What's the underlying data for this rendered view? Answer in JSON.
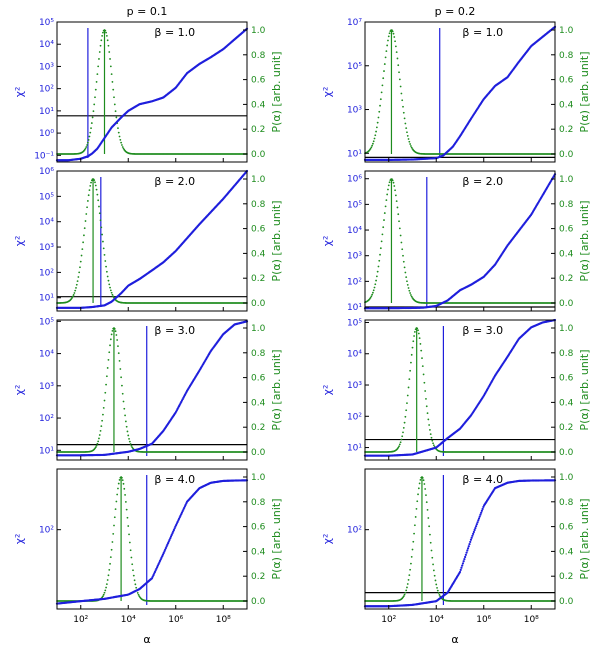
{
  "column_titles": [
    "p = 0.1",
    "p = 0.2"
  ],
  "left_axis_label": "χ²",
  "right_axis_label": "P(α) [arb. unit]",
  "x_axis_label": "α",
  "x_ticks": [
    "10²",
    "10⁴",
    "10⁶",
    "10⁸"
  ],
  "right_ticks": [
    "0.0",
    "0.2",
    "0.4",
    "0.6",
    "0.8",
    "1.0"
  ],
  "colors": {
    "chi2": "#1f1fdc",
    "prob": "#1e8c1e",
    "threshold": "#000000"
  },
  "chart_data": [
    {
      "type": "line",
      "p": "0.1",
      "title": "β = 1.0",
      "xlim": [
        10,
        1000000000.0
      ],
      "x_scale": "log",
      "ylim": [
        0.05,
        100000.0
      ],
      "y_scale": "log",
      "y_ticks": [
        "10⁻¹",
        "10⁰",
        "10¹",
        "10²",
        "10³",
        "10⁴",
        "10⁵"
      ],
      "chi2": {
        "x": [
          10,
          30,
          100,
          200,
          300,
          500,
          1000,
          2000,
          5000,
          10000,
          30000,
          100000,
          300000,
          1000000,
          3000000,
          10000000,
          30000000,
          100000000,
          1000000000
        ],
        "y": [
          0.06,
          0.06,
          0.07,
          0.09,
          0.12,
          0.2,
          0.6,
          1.8,
          5,
          10,
          20,
          27,
          40,
          110,
          500,
          1300,
          2600,
          6000,
          50000
        ]
      },
      "prob": {
        "center": 1000,
        "width_decades": 0.32
      },
      "threshold": 6,
      "alpha_opt": 200
    },
    {
      "type": "line",
      "p": "0.2",
      "title": "β = 1.0",
      "xlim": [
        10,
        1000000000.0
      ],
      "x_scale": "log",
      "ylim": [
        4,
        10000000.0
      ],
      "y_scale": "log",
      "y_ticks": [
        "10¹",
        "10³",
        "10⁵",
        "10⁷"
      ],
      "chi2": {
        "x": [
          10,
          100,
          1000,
          10000,
          20000,
          50000,
          100000,
          300000,
          1000000,
          3000000,
          10000000,
          30000000,
          100000000,
          1000000000
        ],
        "y": [
          5,
          5,
          5.2,
          6,
          8,
          20,
          60,
          400,
          3000,
          12000,
          30000,
          150000,
          800000,
          6000000
        ]
      },
      "prob": {
        "center": 130,
        "width_decades": 0.35
      },
      "threshold": 6.5,
      "alpha_opt": 14000
    },
    {
      "type": "line",
      "p": "0.1",
      "title": "β = 2.0",
      "xlim": [
        10,
        1000000000.0
      ],
      "x_scale": "log",
      "ylim": [
        3,
        1000000.0
      ],
      "y_scale": "log",
      "y_ticks": [
        "10¹",
        "10²",
        "10³",
        "10⁴",
        "10⁵",
        "10⁶"
      ],
      "chi2": {
        "x": [
          10,
          100,
          300,
          1000,
          2000,
          5000,
          10000,
          30000,
          100000,
          300000,
          1000000,
          10000000,
          100000000,
          1000000000
        ],
        "y": [
          4,
          4,
          4.3,
          5,
          7,
          15,
          30,
          55,
          120,
          250,
          700,
          8000,
          80000,
          1000000
        ]
      },
      "prob": {
        "center": 330,
        "width_decades": 0.35
      },
      "threshold": 11,
      "alpha_opt": 700
    },
    {
      "type": "line",
      "p": "0.2",
      "title": "β = 2.0",
      "xlim": [
        10,
        1000000000.0
      ],
      "x_scale": "log",
      "ylim": [
        7,
        2000000.0
      ],
      "y_scale": "log",
      "y_ticks": [
        "10¹",
        "10²",
        "10³",
        "10⁴",
        "10⁵",
        "10⁶"
      ],
      "chi2": {
        "x": [
          10,
          100,
          1000,
          3000,
          10000,
          30000,
          100000,
          300000,
          1000000,
          3000000,
          10000000,
          100000000,
          1000000000
        ],
        "y": [
          9,
          9,
          9.2,
          9.5,
          11,
          18,
          45,
          75,
          150,
          450,
          2500,
          40000,
          1500000
        ]
      },
      "prob": {
        "center": 130,
        "width_decades": 0.35
      },
      "threshold": 10,
      "alpha_opt": 4000
    },
    {
      "type": "line",
      "p": "0.1",
      "title": "β = 3.0",
      "xlim": [
        10,
        1000000000.0
      ],
      "x_scale": "log",
      "ylim": [
        5,
        110000.0
      ],
      "y_scale": "log",
      "y_ticks": [
        "10¹",
        "10²",
        "10³",
        "10⁴",
        "10⁵"
      ],
      "chi2": {
        "x": [
          10,
          100,
          1000,
          10000,
          30000,
          100000,
          300000,
          1000000,
          3000000,
          10000000,
          30000000,
          100000000,
          300000000,
          1000000000
        ],
        "y": [
          7,
          7,
          7.2,
          9,
          11,
          16,
          40,
          150,
          700,
          3000,
          12000,
          40000,
          80000,
          100000
        ]
      },
      "prob": {
        "center": 2500,
        "width_decades": 0.3
      },
      "threshold": 15,
      "alpha_opt": 60000
    },
    {
      "type": "line",
      "p": "0.2",
      "title": "β = 3.0",
      "xlim": [
        10,
        1000000000.0
      ],
      "x_scale": "log",
      "ylim": [
        4,
        120000.0
      ],
      "y_scale": "log",
      "y_ticks": [
        "10¹",
        "10²",
        "10³",
        "10⁴",
        "10⁵"
      ],
      "chi2": {
        "x": [
          10,
          100,
          1000,
          10000,
          30000,
          100000,
          300000,
          1000000,
          3000000,
          10000000,
          30000000,
          100000000,
          300000000,
          1000000000
        ],
        "y": [
          5.5,
          5.5,
          6,
          10,
          20,
          40,
          110,
          450,
          2000,
          8000,
          30000,
          70000,
          100000,
          120000
        ]
      },
      "prob": {
        "center": 1500,
        "width_decades": 0.3
      },
      "threshold": 18,
      "alpha_opt": 20000
    },
    {
      "type": "line",
      "p": "0.1",
      "title": "β = 4.0",
      "xlim": [
        10,
        1000000000.0
      ],
      "x_scale": "log",
      "ylim": [
        14,
        450
      ],
      "y_scale": "log",
      "y_ticks": [
        "10²"
      ],
      "chi2": {
        "x": [
          10,
          100,
          1000,
          10000,
          30000,
          100000,
          300000,
          1000000,
          3000000,
          10000000,
          30000000,
          100000000,
          300000000,
          1000000000
        ],
        "y": [
          16,
          17,
          18,
          20,
          23,
          30,
          55,
          110,
          200,
          280,
          320,
          335,
          338,
          340
        ]
      },
      "prob": {
        "center": 5000,
        "width_decades": 0.3
      },
      "threshold": null,
      "alpha_opt": 60000
    },
    {
      "type": "line",
      "p": "0.2",
      "title": "β = 4.0",
      "xlim": [
        10,
        1000000000.0
      ],
      "x_scale": "log",
      "ylim": [
        14,
        450
      ],
      "y_scale": "log",
      "y_ticks": [
        "10²"
      ],
      "chi2": {
        "x": [
          10,
          100,
          1000,
          10000,
          30000,
          100000,
          300000,
          1000000,
          3000000,
          10000000,
          30000000,
          100000000,
          300000000,
          1000000000
        ],
        "y": [
          15,
          15,
          15.5,
          17,
          21,
          35,
          80,
          180,
          280,
          320,
          335,
          338,
          339,
          340
        ]
      },
      "prob": {
        "center": 2500,
        "width_decades": 0.3
      },
      "threshold": 21,
      "alpha_opt": 20000
    }
  ]
}
